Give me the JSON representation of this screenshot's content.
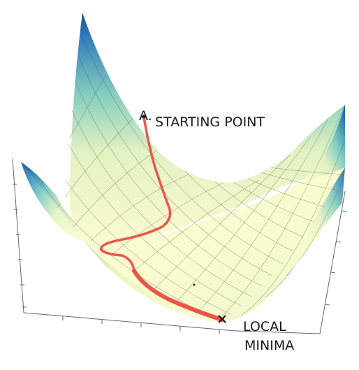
{
  "labels": {
    "start_marker": "A.",
    "start": "STARTING POINT",
    "end_line1": "LOCAL",
    "end_line2": "MINIMA"
  },
  "colors": {
    "surface_low": "#fbfbd0",
    "surface_mid": "#7dccc0",
    "surface_high": "#1a4f96",
    "path": "#e8463c",
    "mesh": "#3b4a40",
    "axis": "#666666"
  },
  "icons": {
    "end_marker": "x-mark-icon"
  }
}
